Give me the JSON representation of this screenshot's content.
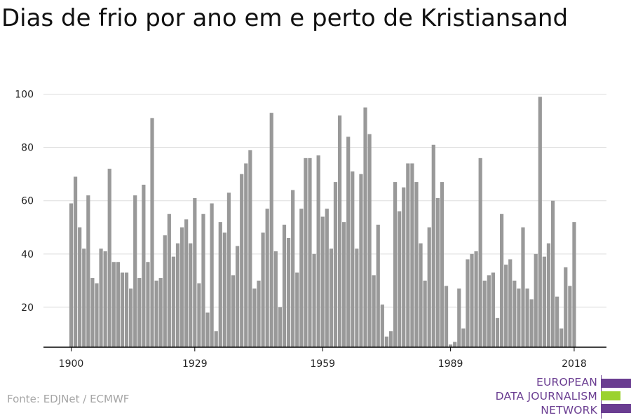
{
  "title": "Dias de frio por ano em e perto de Kristiansand",
  "source": "Fonte: EDJNet / ECMWF",
  "logo": {
    "lines": [
      "EUROPEAN",
      "DATA JOURNALISM",
      "NETWORK"
    ],
    "colors": {
      "purple": "#6a3d91",
      "green": "#9bd22f"
    }
  },
  "chart_data": {
    "type": "bar",
    "title": "Dias de frio por ano em e perto de Kristiansand",
    "xlabel": "",
    "ylabel": "",
    "x_start": 1900,
    "x_ticks": [
      1900,
      1929,
      1959,
      1989,
      2018
    ],
    "y_ticks": [
      20,
      40,
      60,
      80,
      100
    ],
    "ylim": [
      5,
      100
    ],
    "grid": true,
    "bar_color": "#999999",
    "x": [
      1900,
      1901,
      1902,
      1903,
      1904,
      1905,
      1906,
      1907,
      1908,
      1909,
      1910,
      1911,
      1912,
      1913,
      1914,
      1915,
      1916,
      1917,
      1918,
      1919,
      1920,
      1921,
      1922,
      1923,
      1924,
      1925,
      1926,
      1927,
      1928,
      1929,
      1930,
      1931,
      1932,
      1933,
      1934,
      1935,
      1936,
      1937,
      1938,
      1939,
      1940,
      1941,
      1942,
      1943,
      1944,
      1945,
      1946,
      1947,
      1948,
      1949,
      1950,
      1951,
      1952,
      1953,
      1954,
      1955,
      1956,
      1957,
      1958,
      1959,
      1960,
      1961,
      1962,
      1963,
      1964,
      1965,
      1966,
      1967,
      1968,
      1969,
      1970,
      1971,
      1972,
      1973,
      1974,
      1975,
      1976,
      1977,
      1978,
      1979,
      1980,
      1981,
      1982,
      1983,
      1984,
      1985,
      1986,
      1987,
      1988,
      1989,
      1990,
      1991,
      1992,
      1993,
      1994,
      1995,
      1996,
      1997,
      1998,
      1999,
      2000,
      2001,
      2002,
      2003,
      2004,
      2005,
      2006,
      2007,
      2008,
      2009,
      2010,
      2011,
      2012,
      2013,
      2014,
      2015,
      2016,
      2017,
      2018
    ],
    "values": [
      59,
      69,
      50,
      42,
      62,
      31,
      29,
      42,
      41,
      72,
      37,
      37,
      33,
      33,
      27,
      62,
      31,
      66,
      37,
      91,
      30,
      31,
      47,
      55,
      39,
      44,
      50,
      53,
      44,
      61,
      29,
      55,
      18,
      59,
      11,
      52,
      48,
      63,
      32,
      43,
      70,
      74,
      79,
      27,
      30,
      48,
      57,
      93,
      41,
      20,
      51,
      46,
      64,
      33,
      57,
      76,
      76,
      40,
      77,
      54,
      57,
      42,
      67,
      92,
      52,
      84,
      71,
      42,
      70,
      95,
      85,
      32,
      51,
      21,
      9,
      11,
      67,
      56,
      65,
      74,
      74,
      67,
      44,
      30,
      50,
      81,
      61,
      67,
      28,
      6,
      7,
      27,
      12,
      38,
      40,
      41,
      76,
      30,
      32,
      33,
      16,
      55,
      36,
      38,
      30,
      27,
      50,
      27,
      23,
      40,
      99,
      39,
      44,
      60,
      24,
      12,
      35,
      28,
      52
    ]
  }
}
